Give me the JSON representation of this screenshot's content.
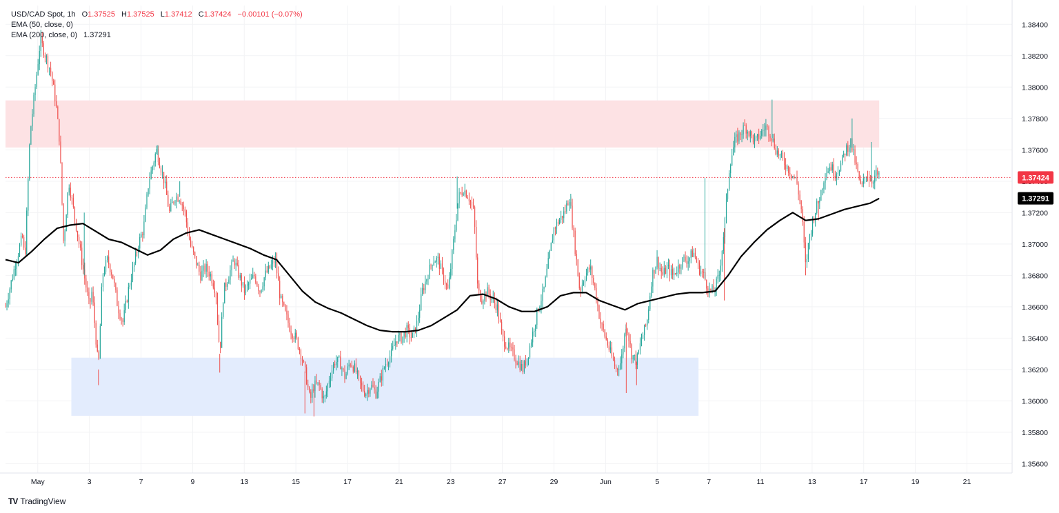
{
  "header": {
    "symbol": "USD/CAD Spot, 1h",
    "open_label": "O",
    "open": "1.37525",
    "high_label": "H",
    "high": "1.37525",
    "low_label": "L",
    "low": "1.37412",
    "close_label": "C",
    "close": "1.37424",
    "change": "−0.00101 (−0.07%)",
    "ema50": "EMA (50, close, 0)",
    "ema200": "EMA (200, close, 0)",
    "ema200_value": "1.37291"
  },
  "branding": {
    "logo_mark": "TV",
    "logo_text": "TradingView"
  },
  "price_tags": {
    "last": "1.37424",
    "ema": "1.37291"
  },
  "colors": {
    "up": "#26a69a",
    "down": "#ef5350",
    "ema": "#000000",
    "resistance_zone": "#fde2e4",
    "support_zone": "#e3ecfd",
    "last_price": "#f23645"
  },
  "chart_data": {
    "type": "candlestick",
    "symbol": "USD/CAD Spot",
    "interval": "1h",
    "ylim": [
      1.3554,
      1.3852
    ],
    "y_ticks": [
      "1.35600",
      "1.35800",
      "1.36000",
      "1.36200",
      "1.36400",
      "1.36600",
      "1.36800",
      "1.37000",
      "1.37200",
      "1.37400",
      "1.37600",
      "1.37800",
      "1.38000",
      "1.38200",
      "1.38400"
    ],
    "x_ticks": [
      {
        "label": "May",
        "x": 0
      },
      {
        "label": "3",
        "x": 2
      },
      {
        "label": "7",
        "x": 4
      },
      {
        "label": "9",
        "x": 6
      },
      {
        "label": "13",
        "x": 8
      },
      {
        "label": "15",
        "x": 10
      },
      {
        "label": "17",
        "x": 12
      },
      {
        "label": "21",
        "x": 14
      },
      {
        "label": "23",
        "x": 16
      },
      {
        "label": "27",
        "x": 18
      },
      {
        "label": "29",
        "x": 20
      },
      {
        "label": "Jun",
        "x": 22
      },
      {
        "label": "5",
        "x": 24
      },
      {
        "label": "7",
        "x": 26
      },
      {
        "label": "11",
        "x": 28
      },
      {
        "label": "13",
        "x": 30
      },
      {
        "label": "17",
        "x": 32
      },
      {
        "label": "19",
        "x": 34
      },
      {
        "label": "21",
        "x": 36
      }
    ],
    "x_range": [
      -1.25,
      37.75
    ],
    "price_path": [
      [
        -1.25,
        1.366
      ],
      [
        -0.9,
        1.3685
      ],
      [
        -0.6,
        1.3705
      ],
      [
        -0.5,
        1.369
      ],
      [
        -0.3,
        1.377
      ],
      [
        -0.1,
        1.38
      ],
      [
        0.1,
        1.383
      ],
      [
        0.3,
        1.382
      ],
      [
        0.5,
        1.381
      ],
      [
        0.7,
        1.379
      ],
      [
        0.85,
        1.3765
      ],
      [
        1.0,
        1.37
      ],
      [
        1.2,
        1.374
      ],
      [
        1.4,
        1.372
      ],
      [
        1.6,
        1.37
      ],
      [
        1.8,
        1.368
      ],
      [
        2.0,
        1.366
      ],
      [
        2.1,
        1.367
      ],
      [
        2.35,
        1.362
      ],
      [
        2.5,
        1.368
      ],
      [
        2.7,
        1.369
      ],
      [
        2.9,
        1.368
      ],
      [
        3.1,
        1.366
      ],
      [
        3.3,
        1.365
      ],
      [
        3.5,
        1.367
      ],
      [
        3.7,
        1.3685
      ],
      [
        3.9,
        1.37
      ],
      [
        4.1,
        1.371
      ],
      [
        4.3,
        1.374
      ],
      [
        4.6,
        1.376
      ],
      [
        4.9,
        1.374
      ],
      [
        5.1,
        1.372
      ],
      [
        5.3,
        1.373
      ],
      [
        5.5,
        1.373
      ],
      [
        5.7,
        1.372
      ],
      [
        5.9,
        1.37
      ],
      [
        6.1,
        1.369
      ],
      [
        6.3,
        1.368
      ],
      [
        6.5,
        1.3685
      ],
      [
        6.7,
        1.368
      ],
      [
        6.9,
        1.367
      ],
      [
        7.05,
        1.363
      ],
      [
        7.2,
        1.367
      ],
      [
        7.4,
        1.368
      ],
      [
        7.6,
        1.369
      ],
      [
        7.8,
        1.368
      ],
      [
        8.0,
        1.367
      ],
      [
        8.2,
        1.3675
      ],
      [
        8.4,
        1.368
      ],
      [
        8.6,
        1.367
      ],
      [
        8.8,
        1.368
      ],
      [
        9.0,
        1.3685
      ],
      [
        9.2,
        1.369
      ],
      [
        9.4,
        1.3665
      ],
      [
        9.6,
        1.3655
      ],
      [
        9.8,
        1.3645
      ],
      [
        10.0,
        1.364
      ],
      [
        10.2,
        1.363
      ],
      [
        10.4,
        1.3615
      ],
      [
        10.55,
        1.36
      ],
      [
        10.7,
        1.361
      ],
      [
        10.9,
        1.361
      ],
      [
        11.1,
        1.36
      ],
      [
        11.3,
        1.3615
      ],
      [
        11.5,
        1.3625
      ],
      [
        11.7,
        1.3625
      ],
      [
        11.9,
        1.3615
      ],
      [
        12.1,
        1.3625
      ],
      [
        12.3,
        1.362
      ],
      [
        12.5,
        1.361
      ],
      [
        12.7,
        1.3605
      ],
      [
        12.9,
        1.361
      ],
      [
        13.1,
        1.3605
      ],
      [
        13.3,
        1.3615
      ],
      [
        13.5,
        1.3625
      ],
      [
        13.7,
        1.363
      ],
      [
        13.9,
        1.364
      ],
      [
        14.1,
        1.364
      ],
      [
        14.3,
        1.3645
      ],
      [
        14.5,
        1.364
      ],
      [
        14.7,
        1.365
      ],
      [
        14.9,
        1.367
      ],
      [
        15.1,
        1.368
      ],
      [
        15.3,
        1.369
      ],
      [
        15.5,
        1.369
      ],
      [
        15.7,
        1.368
      ],
      [
        15.9,
        1.367
      ],
      [
        16.1,
        1.37
      ],
      [
        16.3,
        1.373
      ],
      [
        16.5,
        1.3735
      ],
      [
        16.7,
        1.373
      ],
      [
        16.9,
        1.372
      ],
      [
        17.05,
        1.367
      ],
      [
        17.2,
        1.3665
      ],
      [
        17.4,
        1.367
      ],
      [
        17.6,
        1.3665
      ],
      [
        17.8,
        1.366
      ],
      [
        18.0,
        1.364
      ],
      [
        18.2,
        1.3635
      ],
      [
        18.4,
        1.363
      ],
      [
        18.6,
        1.3625
      ],
      [
        18.8,
        1.362
      ],
      [
        19.0,
        1.363
      ],
      [
        19.2,
        1.3645
      ],
      [
        19.4,
        1.366
      ],
      [
        19.6,
        1.367
      ],
      [
        19.8,
        1.369
      ],
      [
        20.0,
        1.371
      ],
      [
        20.2,
        1.3715
      ],
      [
        20.4,
        1.372
      ],
      [
        20.6,
        1.373
      ],
      [
        20.8,
        1.37
      ],
      [
        21.0,
        1.367
      ],
      [
        21.2,
        1.368
      ],
      [
        21.4,
        1.3685
      ],
      [
        21.6,
        1.367
      ],
      [
        21.8,
        1.365
      ],
      [
        22.0,
        1.364
      ],
      [
        22.2,
        1.363
      ],
      [
        22.4,
        1.362
      ],
      [
        22.6,
        1.3625
      ],
      [
        22.8,
        1.365
      ],
      [
        23.0,
        1.363
      ],
      [
        23.2,
        1.3625
      ],
      [
        23.4,
        1.364
      ],
      [
        23.6,
        1.365
      ],
      [
        23.8,
        1.368
      ],
      [
        24.0,
        1.369
      ],
      [
        24.2,
        1.368
      ],
      [
        24.4,
        1.3685
      ],
      [
        24.6,
        1.368
      ],
      [
        24.8,
        1.3685
      ],
      [
        25.0,
        1.369
      ],
      [
        25.2,
        1.369
      ],
      [
        25.4,
        1.3695
      ],
      [
        25.6,
        1.3685
      ],
      [
        25.8,
        1.368
      ],
      [
        26.0,
        1.367
      ],
      [
        26.2,
        1.367
      ],
      [
        26.4,
        1.368
      ],
      [
        26.6,
        1.371
      ],
      [
        26.8,
        1.375
      ],
      [
        27.0,
        1.3765
      ],
      [
        27.2,
        1.377
      ],
      [
        27.4,
        1.3775
      ],
      [
        27.6,
        1.377
      ],
      [
        27.8,
        1.3765
      ],
      [
        28.0,
        1.377
      ],
      [
        28.2,
        1.3775
      ],
      [
        28.4,
        1.377
      ],
      [
        28.6,
        1.376
      ],
      [
        28.8,
        1.3755
      ],
      [
        29.0,
        1.375
      ],
      [
        29.2,
        1.3745
      ],
      [
        29.4,
        1.374
      ],
      [
        29.6,
        1.372
      ],
      [
        29.75,
        1.3685
      ],
      [
        29.9,
        1.3705
      ],
      [
        30.1,
        1.372
      ],
      [
        30.3,
        1.373
      ],
      [
        30.5,
        1.3745
      ],
      [
        30.7,
        1.375
      ],
      [
        30.9,
        1.3745
      ],
      [
        31.1,
        1.375
      ],
      [
        31.3,
        1.376
      ],
      [
        31.5,
        1.3765
      ],
      [
        31.7,
        1.375
      ],
      [
        31.9,
        1.3735
      ],
      [
        32.1,
        1.3745
      ],
      [
        32.3,
        1.374
      ],
      [
        32.5,
        1.3745
      ],
      [
        32.6,
        1.3742
      ]
    ],
    "wick_spikes": [
      [
        1.8,
        1.372
      ],
      [
        2.35,
        1.361
      ],
      [
        4.65,
        1.3763
      ],
      [
        5.5,
        1.374
      ],
      [
        7.05,
        1.3618
      ],
      [
        10.35,
        1.3592
      ],
      [
        10.7,
        1.359
      ],
      [
        16.25,
        1.3743
      ],
      [
        20.65,
        1.3732
      ],
      [
        22.8,
        1.3605
      ],
      [
        23.2,
        1.361
      ],
      [
        25.85,
        1.3742
      ],
      [
        26.6,
        1.3664
      ],
      [
        28.45,
        1.3792
      ],
      [
        29.75,
        1.368
      ],
      [
        30.25,
        1.3715
      ],
      [
        31.55,
        1.378
      ],
      [
        32.3,
        1.3765
      ]
    ],
    "ema200": [
      [
        -1.25,
        1.369
      ],
      [
        -0.75,
        1.3688
      ],
      [
        -0.25,
        1.3695
      ],
      [
        0.25,
        1.3703
      ],
      [
        0.75,
        1.371
      ],
      [
        1.25,
        1.3712
      ],
      [
        1.75,
        1.3713
      ],
      [
        2.25,
        1.3708
      ],
      [
        2.75,
        1.3703
      ],
      [
        3.25,
        1.3701
      ],
      [
        3.75,
        1.3697
      ],
      [
        4.25,
        1.3693
      ],
      [
        4.75,
        1.3696
      ],
      [
        5.25,
        1.3703
      ],
      [
        5.75,
        1.3707
      ],
      [
        6.25,
        1.3709
      ],
      [
        6.75,
        1.3706
      ],
      [
        7.25,
        1.3703
      ],
      [
        7.75,
        1.37
      ],
      [
        8.25,
        1.3697
      ],
      [
        8.75,
        1.3693
      ],
      [
        9.25,
        1.369
      ],
      [
        9.75,
        1.368
      ],
      [
        10.25,
        1.367
      ],
      [
        10.75,
        1.3663
      ],
      [
        11.25,
        1.3659
      ],
      [
        11.75,
        1.3656
      ],
      [
        12.25,
        1.3652
      ],
      [
        12.75,
        1.3648
      ],
      [
        13.25,
        1.3645
      ],
      [
        13.75,
        1.3644
      ],
      [
        14.25,
        1.3644
      ],
      [
        14.75,
        1.3645
      ],
      [
        15.25,
        1.3648
      ],
      [
        15.75,
        1.3653
      ],
      [
        16.25,
        1.3658
      ],
      [
        16.75,
        1.3667
      ],
      [
        17.25,
        1.3668
      ],
      [
        17.75,
        1.3665
      ],
      [
        18.25,
        1.366
      ],
      [
        18.75,
        1.3657
      ],
      [
        19.25,
        1.3657
      ],
      [
        19.75,
        1.366
      ],
      [
        20.25,
        1.3667
      ],
      [
        20.75,
        1.3669
      ],
      [
        21.25,
        1.3669
      ],
      [
        21.75,
        1.3664
      ],
      [
        22.25,
        1.3661
      ],
      [
        22.75,
        1.3658
      ],
      [
        23.25,
        1.3662
      ],
      [
        23.75,
        1.3664
      ],
      [
        24.25,
        1.3666
      ],
      [
        24.75,
        1.3668
      ],
      [
        25.25,
        1.3669
      ],
      [
        25.75,
        1.3669
      ],
      [
        26.25,
        1.367
      ],
      [
        26.75,
        1.368
      ],
      [
        27.25,
        1.3692
      ],
      [
        27.75,
        1.3701
      ],
      [
        28.25,
        1.3709
      ],
      [
        28.75,
        1.3715
      ],
      [
        29.25,
        1.372
      ],
      [
        29.75,
        1.3715
      ],
      [
        30.25,
        1.3716
      ],
      [
        30.75,
        1.3719
      ],
      [
        31.25,
        1.3722
      ],
      [
        31.75,
        1.3724
      ],
      [
        32.25,
        1.3726
      ],
      [
        32.6,
        1.3729
      ]
    ],
    "last_price": 1.37424,
    "ema200_last": 1.37291,
    "zones": [
      {
        "name": "resistance",
        "x0": -1.25,
        "x1": 32.6,
        "y0": 1.37615,
        "y1": 1.37915
      },
      {
        "name": "support",
        "x0": 1.3,
        "x1": 25.6,
        "y0": 1.35905,
        "y1": 1.36275
      }
    ],
    "grid": true
  }
}
